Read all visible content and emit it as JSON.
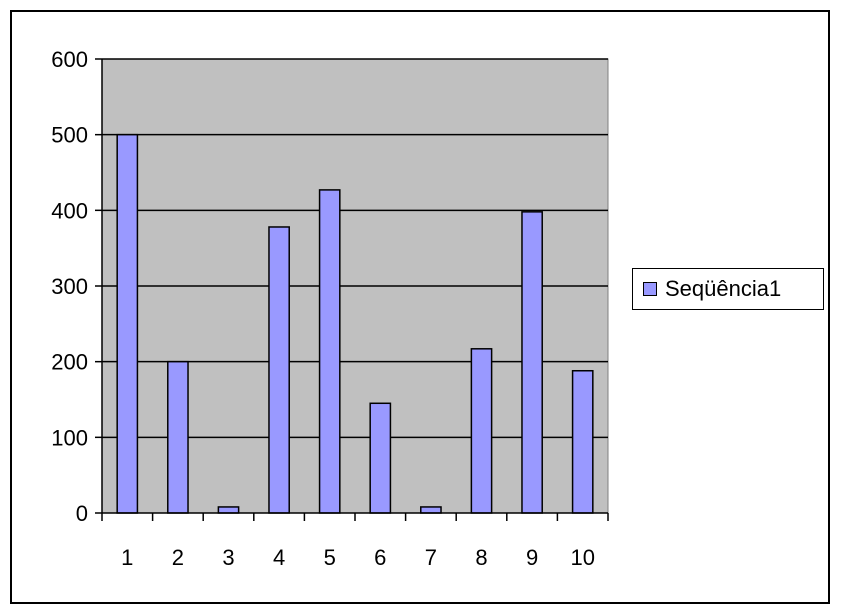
{
  "chart_data": {
    "type": "bar",
    "categories": [
      "1",
      "2",
      "3",
      "4",
      "5",
      "6",
      "7",
      "8",
      "9",
      "10"
    ],
    "series": [
      {
        "name": "Seqüência1",
        "values": [
          500,
          200,
          8,
          378,
          427,
          145,
          8,
          217,
          398,
          188
        ]
      }
    ],
    "ylim": [
      0,
      600
    ],
    "yticks": [
      "0",
      "100",
      "200",
      "300",
      "400",
      "500",
      "600"
    ],
    "grid": true,
    "legend": "right",
    "colors": {
      "bar_fill": "#9999ff",
      "bar_stroke": "#000000",
      "plot_background": "#c0c0c0",
      "gridline": "#000000"
    }
  },
  "legend": {
    "label": "Seqüência1"
  }
}
